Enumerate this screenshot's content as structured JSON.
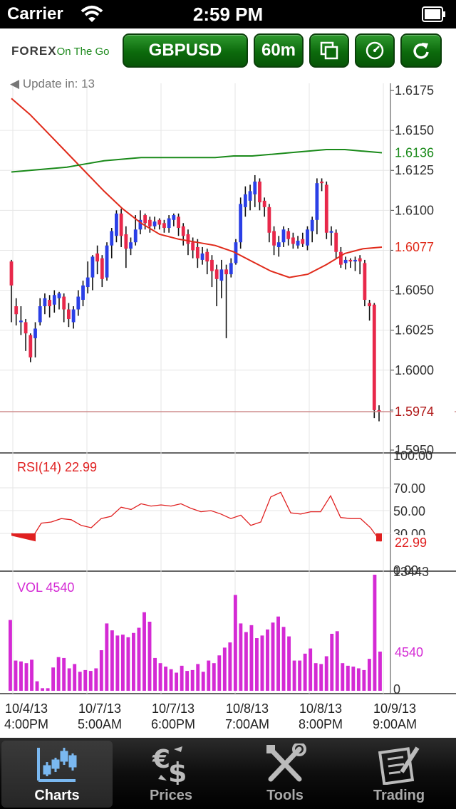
{
  "status_bar": {
    "carrier": "Carrier",
    "time": "2:59 PM"
  },
  "header": {
    "logo_main": "FOREX",
    "logo_sub": "On The Go",
    "symbol_button": "GBPUSD",
    "timeframe_button": "60m",
    "update_text": "Update in: 13"
  },
  "chart": {
    "price_axis_labels": [
      "1.6175",
      "1.6150",
      "1.6125",
      "1.6100",
      "1.6075",
      "1.6050",
      "1.6025",
      "1.6000",
      "1.5975",
      "1.5950"
    ],
    "ma_slow_value": "1.6136",
    "ma_fast_value": "1.6077",
    "last_price": "1.5974",
    "rsi_label": "RSI(14) 22.99",
    "rsi_value": "22.99",
    "rsi_axis_labels": [
      "100.00",
      "70.00",
      "50.00",
      "30.00",
      "0.00"
    ],
    "vol_label": "VOL 4540",
    "vol_value": "4540",
    "vol_axis_labels": [
      "13443",
      "0"
    ],
    "time_labels": [
      [
        "10/4/13",
        "4:00PM"
      ],
      [
        "10/7/13",
        "5:00AM"
      ],
      [
        "10/7/13",
        "6:00PM"
      ],
      [
        "10/8/13",
        "7:00AM"
      ],
      [
        "10/8/13",
        "8:00PM"
      ],
      [
        "10/9/13",
        "9:00AM"
      ]
    ],
    "colors": {
      "up": "#2a3fe6",
      "down": "#e8284a",
      "ma_fast": "#e02a1a",
      "ma_slow": "#1a8a1a",
      "rsi": "#e02020",
      "volume": "#d42ad4"
    }
  },
  "tabs": [
    {
      "label": "Charts",
      "icon": "chart-icon",
      "active": true
    },
    {
      "label": "Prices",
      "icon": "currency-icon",
      "active": false
    },
    {
      "label": "Tools",
      "icon": "tools-icon",
      "active": false
    },
    {
      "label": "Trading",
      "icon": "trading-icon",
      "active": false
    }
  ]
}
